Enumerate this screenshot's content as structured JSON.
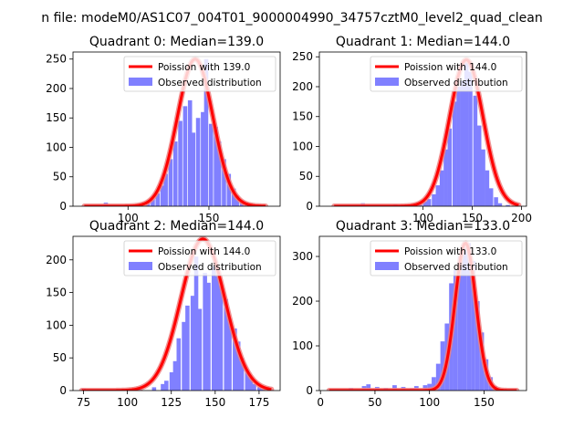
{
  "suptitle": "n file: modeM0/AS1C07_004T01_9000004990_34757cztM0_level2_quad_clean",
  "colors": {
    "bars": "#8080ff",
    "fit_line": "#ff0000",
    "fit_halo": "#f08080",
    "axis": "#000000"
  },
  "chart_data": [
    {
      "type": "bar",
      "title": "Quadrant 0: Median=139.0",
      "legend": [
        "Poission with 139.0",
        "Observed distribution"
      ],
      "legend_position": "top-right",
      "xlim": [
        66,
        194
      ],
      "ylim": [
        0,
        262
      ],
      "xticks": [
        100,
        150
      ],
      "yticks": [
        0,
        50,
        100,
        150,
        200,
        250
      ],
      "bin_width": 2.6,
      "bins": [
        [
          73,
          2
        ],
        [
          85,
          6
        ],
        [
          98,
          2
        ],
        [
          111,
          8
        ],
        [
          114,
          12
        ],
        [
          117,
          22
        ],
        [
          120,
          35
        ],
        [
          122,
          55
        ],
        [
          125,
          80
        ],
        [
          128,
          110
        ],
        [
          131,
          145
        ],
        [
          134,
          170
        ],
        [
          137,
          180
        ],
        [
          139,
          125
        ],
        [
          142,
          150
        ],
        [
          145,
          160
        ],
        [
          147,
          250
        ],
        [
          150,
          140
        ],
        [
          153,
          135
        ],
        [
          155,
          110
        ],
        [
          158,
          80
        ],
        [
          161,
          55
        ],
        [
          164,
          30
        ],
        [
          166,
          18
        ],
        [
          169,
          10
        ],
        [
          172,
          4
        ],
        [
          175,
          2
        ],
        [
          180,
          1
        ]
      ],
      "fit": {
        "mean": 141.5,
        "sd": 11.0,
        "peak": 250,
        "x_range": [
          73,
          185
        ]
      }
    },
    {
      "type": "bar",
      "title": "Quadrant 1: Median=144.0",
      "legend": [
        "Poission with 144.0",
        "Observed distribution"
      ],
      "legend_position": "top-right",
      "xlim": [
        -5,
        205
      ],
      "ylim": [
        0,
        258
      ],
      "xticks": [
        100,
        150,
        200
      ],
      "yticks": [
        0,
        50,
        100,
        150,
        200,
        250
      ],
      "bin_width": 4.2,
      "bins": [
        [
          10,
          2
        ],
        [
          37,
          5
        ],
        [
          46,
          2
        ],
        [
          58,
          2
        ],
        [
          70,
          3
        ],
        [
          82,
          3
        ],
        [
          95,
          4
        ],
        [
          100,
          8
        ],
        [
          104,
          12
        ],
        [
          109,
          20
        ],
        [
          113,
          35
        ],
        [
          117,
          60
        ],
        [
          121,
          95
        ],
        [
          125,
          130
        ],
        [
          130,
          175
        ],
        [
          134,
          200
        ],
        [
          138,
          210
        ],
        [
          142,
          240
        ],
        [
          146,
          225
        ],
        [
          151,
          185
        ],
        [
          155,
          135
        ],
        [
          159,
          95
        ],
        [
          163,
          60
        ],
        [
          167,
          30
        ],
        [
          172,
          15
        ],
        [
          176,
          5
        ],
        [
          184,
          2
        ],
        [
          193,
          1
        ]
      ],
      "fit": {
        "mean": 144,
        "sd": 17,
        "peak": 245,
        "x_range": [
          10,
          197
        ]
      }
    },
    {
      "type": "bar",
      "title": "Quadrant 2: Median=144.0",
      "legend": [
        "Poission with 144.0",
        "Observed distribution"
      ],
      "legend_position": "top-right",
      "xlim": [
        69,
        187
      ],
      "ylim": [
        0,
        236
      ],
      "xticks": [
        75,
        100,
        125,
        150,
        175
      ],
      "yticks": [
        0,
        50,
        100,
        150,
        200
      ],
      "bin_width": 2.38,
      "bins": [
        [
          74,
          3
        ],
        [
          84,
          2
        ],
        [
          87,
          2
        ],
        [
          91,
          1
        ],
        [
          106,
          2
        ],
        [
          114,
          5
        ],
        [
          119,
          10
        ],
        [
          121,
          15
        ],
        [
          124,
          28
        ],
        [
          126,
          45
        ],
        [
          128,
          80
        ],
        [
          131,
          105
        ],
        [
          133,
          130
        ],
        [
          136,
          145
        ],
        [
          138,
          205
        ],
        [
          140,
          125
        ],
        [
          143,
          180
        ],
        [
          145,
          165
        ],
        [
          148,
          190
        ],
        [
          150,
          175
        ],
        [
          152,
          160
        ],
        [
          155,
          140
        ],
        [
          157,
          110
        ],
        [
          160,
          95
        ],
        [
          162,
          75
        ],
        [
          164,
          50
        ],
        [
          167,
          30
        ],
        [
          169,
          20
        ],
        [
          171,
          10
        ],
        [
          174,
          5
        ],
        [
          176,
          2
        ],
        [
          181,
          1
        ]
      ],
      "fit": {
        "mean": 143,
        "sd": 12.5,
        "peak": 232,
        "x_range": [
          74,
          182
        ]
      }
    },
    {
      "type": "bar",
      "title": "Quadrant 3: Median=133.0",
      "legend": [
        "Poission with 133.0",
        "Observed distribution"
      ],
      "legend_position": "top-right",
      "xlim": [
        -1,
        189
      ],
      "ylim": [
        0,
        345
      ],
      "xticks": [
        0,
        50,
        100,
        150
      ],
      "yticks": [
        0,
        100,
        200,
        300
      ],
      "bin_width": 4.0,
      "bins": [
        [
          10,
          3
        ],
        [
          26,
          6
        ],
        [
          38,
          10
        ],
        [
          42,
          14
        ],
        [
          50,
          8
        ],
        [
          58,
          6
        ],
        [
          66,
          12
        ],
        [
          74,
          8
        ],
        [
          82,
          5
        ],
        [
          86,
          10
        ],
        [
          94,
          12
        ],
        [
          98,
          15
        ],
        [
          102,
          30
        ],
        [
          106,
          60
        ],
        [
          110,
          110
        ],
        [
          114,
          150
        ],
        [
          118,
          240
        ],
        [
          122,
          270
        ],
        [
          126,
          300
        ],
        [
          130,
          320
        ],
        [
          134,
          330
        ],
        [
          138,
          290
        ],
        [
          142,
          200
        ],
        [
          146,
          130
        ],
        [
          150,
          70
        ],
        [
          154,
          30
        ],
        [
          158,
          10
        ],
        [
          162,
          3
        ],
        [
          170,
          1
        ]
      ],
      "fit": {
        "mean": 133,
        "sd": 9.5,
        "peak": 330,
        "x_range": [
          8,
          180
        ]
      }
    }
  ]
}
